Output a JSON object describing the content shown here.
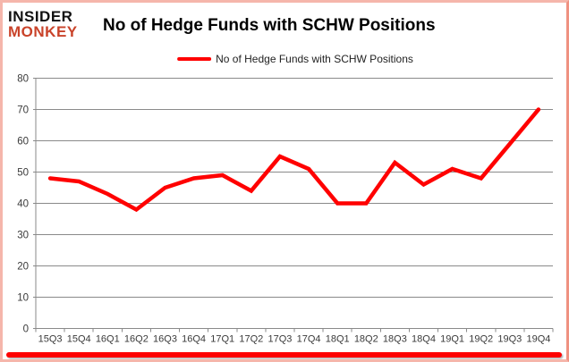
{
  "branding": {
    "line1": "INSIDER",
    "line2": "MONKEY",
    "accent_color": "#c9432a"
  },
  "header": {
    "title": "No of Hedge Funds with SCHW Positions"
  },
  "legend": {
    "label": "No of Hedge Funds with SCHW Positions",
    "line_color": "#ff0000"
  },
  "chart_data": {
    "type": "line",
    "title": "No of Hedge Funds with SCHW Positions",
    "categories": [
      "15Q3",
      "15Q4",
      "16Q1",
      "16Q2",
      "16Q3",
      "16Q4",
      "17Q1",
      "17Q2",
      "17Q3",
      "17Q4",
      "18Q1",
      "18Q2",
      "18Q3",
      "18Q4",
      "19Q1",
      "19Q2",
      "19Q3",
      "19Q4"
    ],
    "series": [
      {
        "name": "No of Hedge Funds with SCHW Positions",
        "values": [
          48,
          47,
          43,
          38,
          45,
          48,
          49,
          44,
          55,
          51,
          40,
          40,
          53,
          46,
          51,
          48,
          59,
          70
        ],
        "color": "#ff0000"
      }
    ],
    "ylim": [
      0,
      80
    ],
    "ytick_step": 10,
    "grid": true,
    "legend_position": "top",
    "xlabel": "",
    "ylabel": ""
  },
  "colors": {
    "grid": "#8a8a8a",
    "axis": "#8a8a8a",
    "tick_label": "#3a3a3a",
    "line": "#ff0000",
    "divider": "#fe0000",
    "border": "#f5b6ab"
  }
}
